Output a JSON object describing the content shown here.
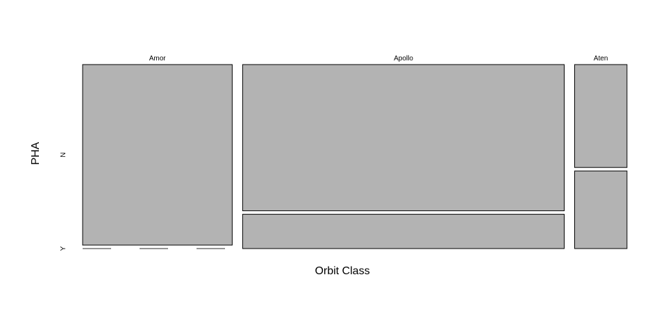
{
  "chart_data": {
    "type": "mosaic",
    "xlabel": "Orbit Class",
    "ylabel": "PHA",
    "x_categories": [
      "Amor",
      "Apollo",
      "Aten"
    ],
    "y_categories": [
      "N",
      "Y"
    ],
    "column_proportions": [
      0.3,
      0.645,
      0.105
    ],
    "cell_proportions": {
      "Amor": {
        "N": 1.0,
        "Y": 0.0
      },
      "Apollo": {
        "N": 0.81,
        "Y": 0.19
      },
      "Aten": {
        "N": 0.57,
        "Y": 0.43
      }
    },
    "fill_color": "#b3b3b3",
    "stroke_color": "#000000"
  }
}
